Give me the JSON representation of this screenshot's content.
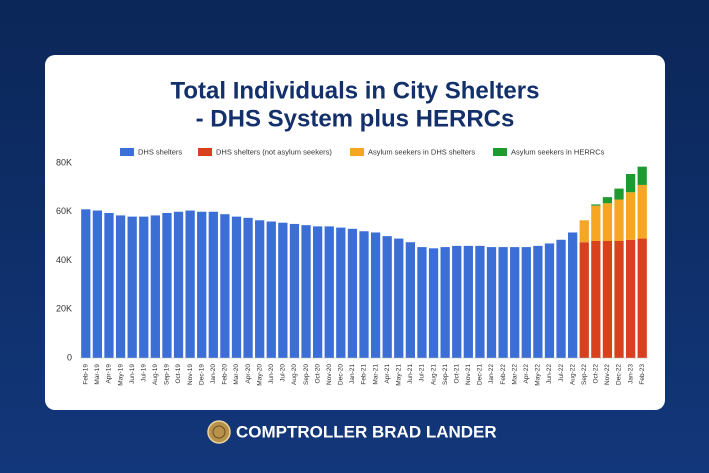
{
  "title": [
    "Total Individuals in City Shelters",
    "- DHS System plus HERRCs"
  ],
  "footer": "COMPTROLLER BRAD LANDER",
  "chart_data": {
    "type": "stacked_bar",
    "categories": [
      "Feb-19",
      "Mar-19",
      "Apr-19",
      "May-19",
      "Jun-19",
      "Jul-19",
      "Aug-19",
      "Sep-19",
      "Oct-19",
      "Nov-19",
      "Dec-19",
      "Jan-20",
      "Feb-20",
      "Mar-20",
      "Apr-20",
      "May-20",
      "Jun-20",
      "Jul-20",
      "Aug-20",
      "Sep-20",
      "Oct-20",
      "Nov-20",
      "Dec-20",
      "Jan-21",
      "Feb-21",
      "Mar-21",
      "Apr-21",
      "May-21",
      "Jun-21",
      "Jul-21",
      "Aug-21",
      "Sep-21",
      "Oct-21",
      "Nov-21",
      "Dec-21",
      "Jan-22",
      "Feb-22",
      "Mar-22",
      "Apr-22",
      "May-22",
      "Jun-22",
      "Jul-22",
      "Aug-22",
      "Sep-22",
      "Oct-22",
      "Nov-22",
      "Dec-22",
      "Jan-23",
      "Feb-23"
    ],
    "series": [
      {
        "name": "DHS shelters",
        "color": "#3b6fd6",
        "values": [
          61000,
          60500,
          59500,
          58500,
          58000,
          58000,
          58500,
          59500,
          60000,
          60500,
          60000,
          60000,
          59000,
          58000,
          57500,
          56500,
          56000,
          55500,
          55000,
          54500,
          54000,
          54000,
          53500,
          53000,
          52000,
          51500,
          50000,
          49000,
          47500,
          45500,
          45000,
          45500,
          46000,
          46000,
          46000,
          45500,
          45500,
          45500,
          45500,
          46000,
          47000,
          48500,
          51500,
          null,
          null,
          null,
          null,
          null,
          null
        ]
      },
      {
        "name": "DHS shelters (not asylum seekers)",
        "color": "#d8401e",
        "values": [
          null,
          null,
          null,
          null,
          null,
          null,
          null,
          null,
          null,
          null,
          null,
          null,
          null,
          null,
          null,
          null,
          null,
          null,
          null,
          null,
          null,
          null,
          null,
          null,
          null,
          null,
          null,
          null,
          null,
          null,
          null,
          null,
          null,
          null,
          null,
          null,
          null,
          null,
          null,
          null,
          null,
          null,
          null,
          47500,
          48000,
          48000,
          48000,
          48500,
          49000
        ]
      },
      {
        "name": "Asylum seekers in DHS shelters",
        "color": "#f5a623",
        "values": [
          null,
          null,
          null,
          null,
          null,
          null,
          null,
          null,
          null,
          null,
          null,
          null,
          null,
          null,
          null,
          null,
          null,
          null,
          null,
          null,
          null,
          null,
          null,
          null,
          null,
          null,
          null,
          null,
          null,
          null,
          null,
          null,
          null,
          null,
          null,
          null,
          null,
          null,
          null,
          null,
          null,
          null,
          null,
          9000,
          14500,
          15500,
          17000,
          19500,
          22000
        ]
      },
      {
        "name": "Asylum seekers in HERRCs",
        "color": "#1f9a2f",
        "values": [
          null,
          null,
          null,
          null,
          null,
          null,
          null,
          null,
          null,
          null,
          null,
          null,
          null,
          null,
          null,
          null,
          null,
          null,
          null,
          null,
          null,
          null,
          null,
          null,
          null,
          null,
          null,
          null,
          null,
          null,
          null,
          null,
          null,
          null,
          null,
          null,
          null,
          null,
          null,
          null,
          null,
          null,
          null,
          null,
          500,
          2500,
          4500,
          7500,
          7500
        ]
      }
    ],
    "ylim": [
      0,
      80000
    ],
    "yticks": [
      0,
      {
        "value": 20000,
        "label": "20K"
      },
      {
        "value": 40000,
        "label": "40K"
      },
      {
        "value": 60000,
        "label": "60K"
      },
      {
        "value": 80000,
        "label": "80K"
      }
    ],
    "grid": false,
    "legend": "top"
  }
}
